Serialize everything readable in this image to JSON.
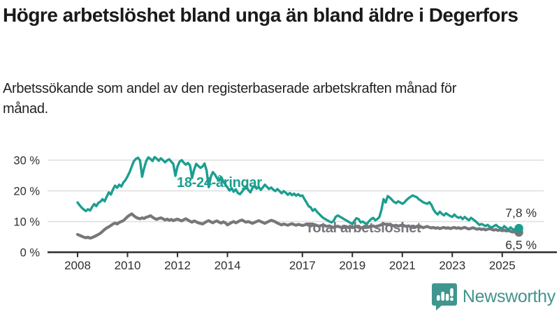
{
  "header": {
    "title": "Högre arbetslöshet bland unga än bland äldre i Degerfors",
    "subtitle": "Arbetssökande som andel av den registerbaserade arbetskraften månad för månad."
  },
  "branding": {
    "logo_icon": "bar-chart-speech-bubble-icon",
    "logo_text": "Newsworthy",
    "logo_color": "#43938d"
  },
  "colors": {
    "young": "#1b9e8f",
    "total": "#77777b",
    "grid": "#dedede",
    "axis": "#2b2b2b",
    "text": "#2f2f2f",
    "value_label": "#333333"
  },
  "chart_data": {
    "type": "line",
    "title": "Högre arbetslöshet bland unga än bland äldre i Degerfors",
    "subtitle": "Arbetssökande som andel av den registerbaserade arbetskraften månad för månad.",
    "unit": "percent",
    "frequency": "monthly",
    "x_start_year": 2008,
    "x_end": "2025-09",
    "xlim": [
      2006.8,
      2027.2
    ],
    "ylim": [
      0,
      33
    ],
    "grid": "horizontal",
    "legend_position": "inline-labels",
    "x_tick_years": [
      2008,
      2010,
      2012,
      2014,
      2017,
      2019,
      2021,
      2023,
      2025
    ],
    "x_tick_labels": [
      "2008",
      "2010",
      "2012",
      "2014",
      "2017",
      "2019",
      "2021",
      "2023",
      "2025"
    ],
    "y_ticks": [
      0,
      10,
      20,
      30
    ],
    "y_tick_labels": [
      "0 %",
      "10 %",
      "20 %",
      "30 %"
    ],
    "series": [
      {
        "name": "18-24-åringar",
        "color": "#1b9e8f",
        "end_label": "7,8 %",
        "end_value": 7.8,
        "values": [
          16.2,
          15.3,
          14.5,
          13.9,
          13.4,
          14.0,
          13.6,
          14.8,
          15.7,
          15.0,
          16.1,
          16.5,
          17.3,
          16.6,
          18.1,
          19.5,
          18.8,
          20.4,
          21.7,
          21.0,
          22.0,
          21.4,
          22.7,
          23.5,
          24.7,
          26.1,
          27.9,
          29.6,
          30.4,
          30.8,
          29.9,
          24.6,
          27.4,
          29.7,
          30.9,
          30.4,
          29.7,
          31.0,
          30.5,
          29.8,
          30.6,
          30.0,
          29.3,
          29.9,
          30.3,
          29.5,
          28.8,
          24.9,
          27.9,
          29.5,
          30.0,
          29.2,
          28.5,
          29.1,
          28.3,
          24.2,
          26.9,
          28.8,
          28.1,
          27.5,
          27.9,
          28.9,
          26.6,
          21.2,
          24.6,
          26.1,
          25.3,
          24.1,
          23.3,
          24.5,
          23.1,
          22.1,
          21.1,
          20.1,
          20.9,
          19.7,
          20.5,
          19.3,
          18.9,
          19.7,
          20.7,
          21.5,
          20.3,
          19.5,
          20.9,
          21.6,
          20.7,
          21.3,
          20.3,
          21.1,
          22.0,
          21.3,
          20.6,
          21.1,
          20.4,
          19.9,
          20.6,
          19.9,
          19.2,
          19.9,
          19.4,
          18.7,
          19.3,
          18.6,
          19.1,
          18.4,
          18.9,
          18.3,
          18.5,
          17.3,
          16.2,
          15.0,
          14.6,
          13.5,
          14.1,
          13.2,
          12.5,
          11.8,
          11.2,
          10.8,
          10.4,
          10.0,
          9.7,
          10.2,
          11.5,
          12.0,
          11.6,
          11.2,
          10.8,
          10.4,
          10.0,
          9.6,
          9.2,
          10.2,
          11.1,
          10.8,
          9.7,
          10.0,
          9.5,
          9.2,
          10.1,
          10.8,
          11.2,
          10.4,
          10.8,
          11.5,
          13.9,
          17.3,
          16.2,
          18.3,
          17.8,
          17.1,
          16.4,
          16.0,
          16.6,
          16.2,
          15.8,
          16.2,
          17.0,
          17.6,
          18.1,
          18.5,
          18.2,
          17.9,
          17.2,
          16.8,
          16.3,
          16.0,
          15.8,
          16.3,
          15.4,
          13.9,
          12.9,
          12.3,
          13.2,
          12.5,
          12.0,
          12.7,
          12.2,
          11.8,
          11.5,
          12.3,
          11.6,
          11.2,
          11.5,
          10.8,
          11.5,
          10.9,
          10.4,
          11.2,
          10.7,
          10.2,
          9.6,
          8.9,
          9.2,
          8.9,
          8.5,
          8.9,
          8.3,
          8.1,
          8.5,
          8.9,
          8.3,
          8.0,
          7.7,
          8.5,
          7.9,
          7.3,
          8.1,
          7.5,
          7.3,
          8.1,
          7.8
        ]
      },
      {
        "name": "Total arbetslöshet",
        "color": "#77777b",
        "end_label": "6,5 %",
        "end_value": 6.5,
        "values": [
          5.8,
          5.5,
          5.2,
          4.9,
          4.7,
          4.9,
          4.6,
          4.8,
          5.1,
          5.4,
          5.8,
          6.2,
          6.8,
          7.4,
          7.9,
          8.3,
          8.7,
          9.2,
          9.5,
          9.2,
          9.7,
          10.0,
          10.3,
          10.9,
          11.6,
          12.1,
          12.5,
          11.9,
          11.4,
          11.1,
          10.9,
          11.2,
          11.0,
          11.4,
          11.6,
          11.9,
          11.4,
          11.0,
          10.7,
          11.0,
          11.2,
          10.9,
          10.5,
          10.8,
          10.4,
          10.7,
          10.3,
          10.6,
          10.8,
          10.5,
          10.2,
          10.6,
          10.9,
          10.5,
          10.1,
          9.8,
          10.2,
          9.9,
          9.6,
          9.4,
          9.2,
          9.6,
          10.0,
          10.3,
          9.9,
          9.6,
          10.0,
          10.2,
          9.8,
          9.5,
          9.9,
          9.6,
          8.9,
          9.3,
          9.7,
          10.0,
          9.6,
          9.9,
          10.3,
          10.5,
          10.1,
          9.8,
          10.0,
          9.7,
          9.4,
          9.7,
          10.0,
          10.3,
          10.0,
          9.7,
          9.4,
          9.8,
          10.1,
          10.4,
          10.2,
          9.9,
          9.5,
          9.2,
          8.9,
          9.2,
          9.0,
          8.8,
          9.1,
          9.3,
          9.0,
          8.8,
          9.1,
          8.9,
          8.7,
          8.9,
          9.1,
          8.8,
          8.6,
          8.8,
          9.0,
          8.7,
          8.5,
          8.7,
          8.9,
          8.6,
          8.4,
          8.6,
          8.3,
          8.1,
          8.3,
          8.5,
          8.2,
          8.0,
          8.2,
          8.4,
          8.1,
          8.3,
          8.0,
          8.2,
          8.4,
          8.1,
          7.9,
          8.1,
          8.3,
          8.5,
          8.2,
          8.4,
          8.6,
          8.3,
          8.5,
          8.7,
          9.0,
          9.3,
          9.1,
          8.9,
          9.1,
          8.8,
          8.6,
          8.8,
          8.5,
          8.7,
          8.9,
          8.6,
          8.4,
          8.6,
          8.3,
          8.5,
          8.2,
          8.4,
          8.1,
          8.3,
          8.0,
          8.2,
          8.4,
          8.1,
          7.9,
          8.1,
          7.8,
          8.0,
          7.7,
          7.9,
          8.1,
          7.8,
          8.0,
          7.7,
          7.9,
          8.1,
          7.8,
          8.0,
          7.7,
          7.9,
          8.1,
          7.8,
          7.6,
          7.8,
          8.0,
          7.7,
          7.5,
          7.7,
          7.4,
          7.6,
          7.3,
          7.5,
          7.7,
          7.4,
          7.2,
          7.4,
          7.1,
          7.3,
          7.0,
          7.2,
          6.9,
          7.1,
          6.8,
          6.6,
          6.7,
          6.4,
          6.5
        ]
      }
    ]
  }
}
